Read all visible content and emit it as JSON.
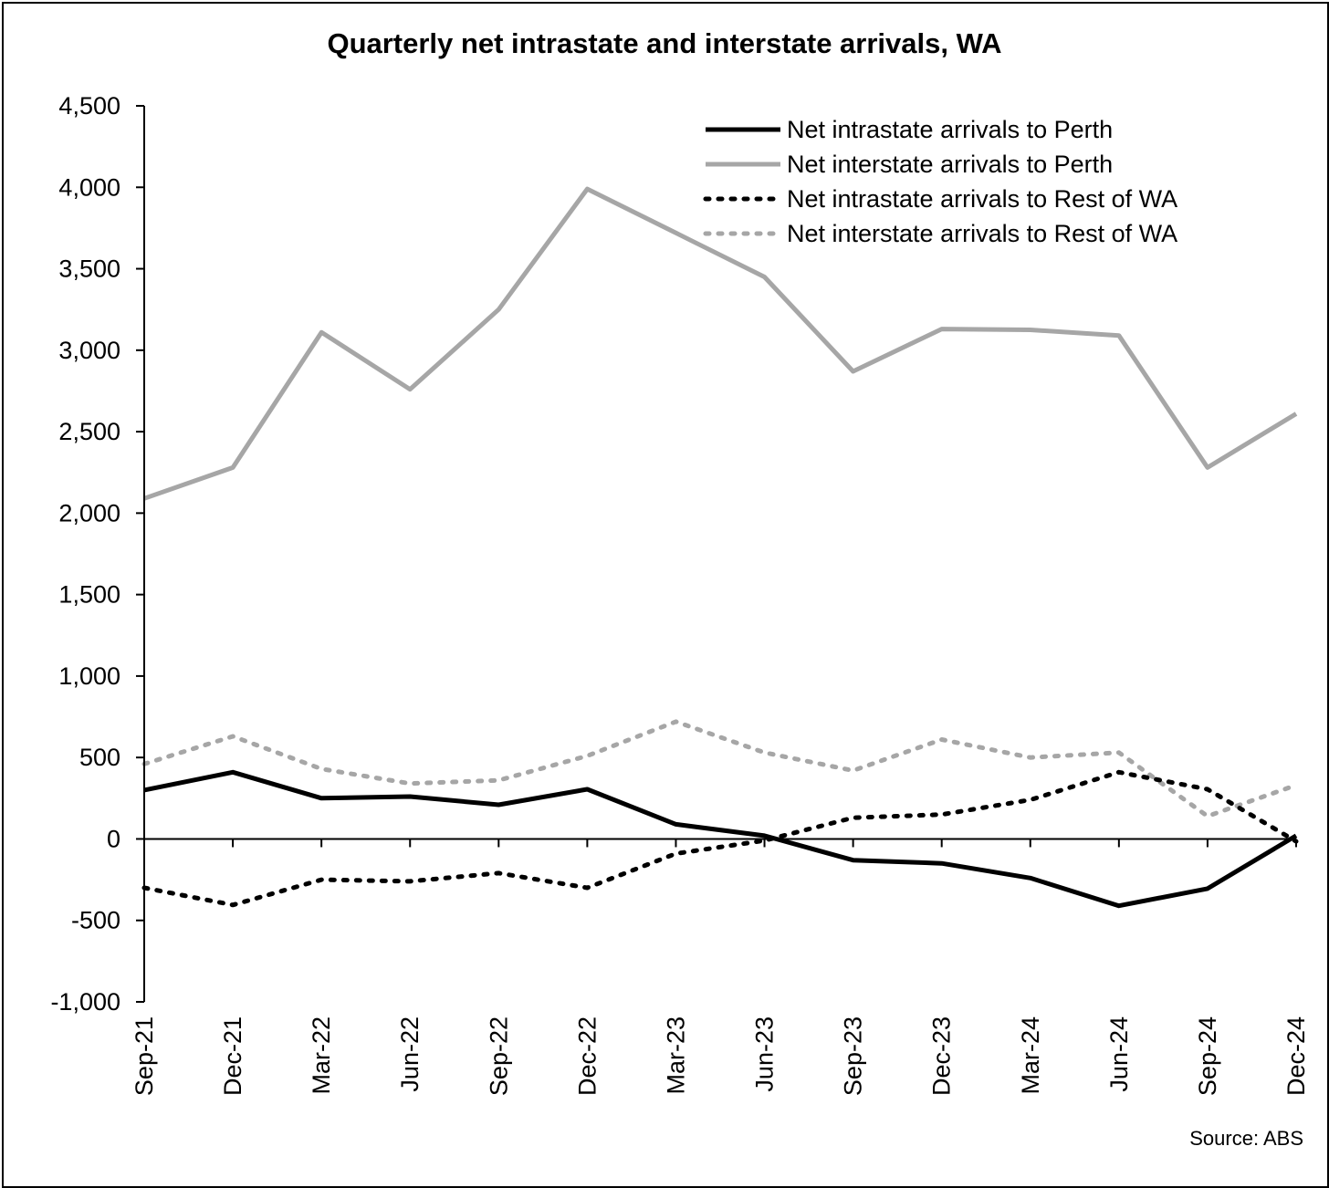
{
  "chart_data": {
    "type": "line",
    "title": "Quarterly net intrastate and interstate arrivals, WA",
    "source": "Source: ABS",
    "xlabel": "",
    "ylabel": "",
    "ylim": [
      -1000,
      4500
    ],
    "yticks": [
      4500,
      4000,
      3500,
      3000,
      2500,
      2000,
      1500,
      1000,
      500,
      0,
      -500,
      -1000
    ],
    "ytick_labels": [
      "4,500",
      "4,000",
      "3,500",
      "3,000",
      "2,500",
      "2,000",
      "1,500",
      "1,000",
      "500",
      "0",
      "-500",
      "-1,000"
    ],
    "categories": [
      "Sep-21",
      "Dec-21",
      "Mar-22",
      "Jun-22",
      "Sep-22",
      "Dec-22",
      "Mar-23",
      "Jun-23",
      "Sep-23",
      "Dec-23",
      "Mar-24",
      "Jun-24",
      "Sep-24",
      "Dec-24"
    ],
    "grid": false,
    "legend_position": "top-right",
    "series": [
      {
        "name": "Net intrastate arrivals to Perth",
        "color": "#000000",
        "style": "solid",
        "values": [
          300,
          410,
          250,
          260,
          210,
          305,
          90,
          20,
          -130,
          -150,
          -240,
          -410,
          -305,
          20
        ]
      },
      {
        "name": "Net interstate arrivals to Perth",
        "color": "#a6a6a6",
        "style": "solid",
        "values": [
          2090,
          2280,
          3110,
          2760,
          3250,
          3990,
          3720,
          3450,
          2870,
          3130,
          3125,
          3090,
          2280,
          2610
        ]
      },
      {
        "name": "Net intrastate arrivals to Rest of WA",
        "color": "#000000",
        "style": "dotted",
        "values": [
          -300,
          -405,
          -250,
          -260,
          -210,
          -300,
          -90,
          -10,
          130,
          150,
          240,
          410,
          305,
          -15
        ]
      },
      {
        "name": "Net interstate arrivals to Rest of WA",
        "color": "#a6a6a6",
        "style": "dotted",
        "values": [
          460,
          630,
          430,
          340,
          360,
          510,
          720,
          530,
          420,
          610,
          500,
          530,
          140,
          330
        ]
      }
    ]
  }
}
